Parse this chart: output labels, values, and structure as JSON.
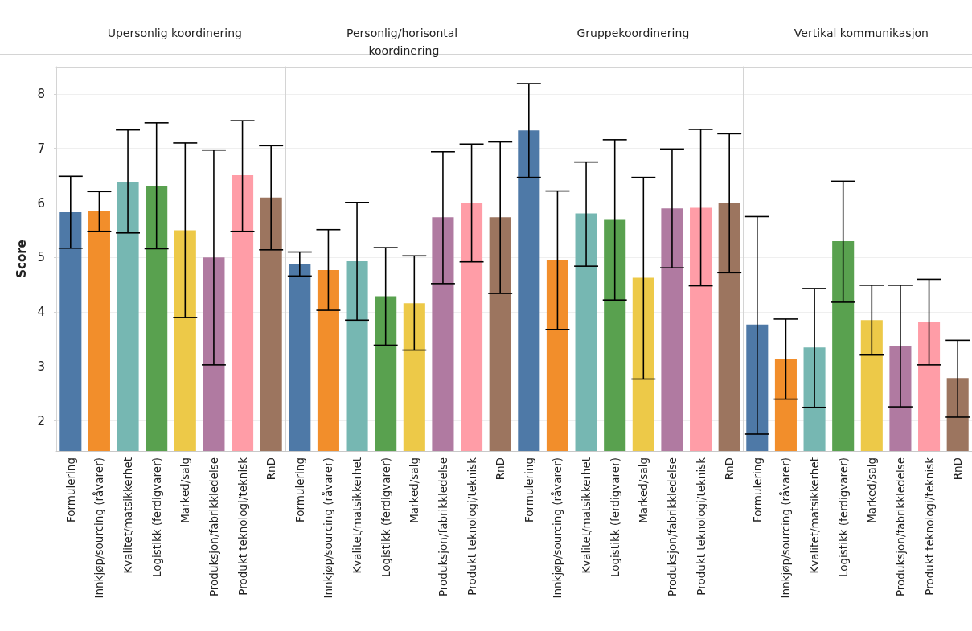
{
  "chart_data": [
    {
      "type": "bar",
      "title": "Upersonlig koordinering",
      "ylabel": "Score",
      "categories": [
        "Formulering",
        "Innkjøp/sourcing (råvarer)",
        "Kvalitet/matsikkerhet",
        "Logistikk (ferdigvarer)",
        "Marked/salg",
        "Produksjon/fabrikkledelse",
        "Produkt teknologi/teknisk",
        "RnD"
      ],
      "values": [
        5.83,
        5.85,
        6.39,
        6.31,
        5.5,
        5.0,
        6.51,
        6.1
      ],
      "errors": [
        [
          5.17,
          6.49
        ],
        [
          5.48,
          6.21
        ],
        [
          5.45,
          7.34
        ],
        [
          5.16,
          7.47
        ],
        [
          3.9,
          7.1
        ],
        [
          3.03,
          6.97
        ],
        [
          5.48,
          7.51
        ],
        [
          5.14,
          7.05
        ]
      ],
      "colors": [
        "#4e79a7",
        "#f28e2b",
        "#76b7b2",
        "#59a14f",
        "#edc948",
        "#b07aa1",
        "#ff9da7",
        "#9c755f"
      ],
      "ylim": [
        1.45,
        8.5
      ],
      "yticks": [
        2,
        3,
        4,
        5,
        6,
        7,
        8
      ],
      "grid": "y"
    },
    {
      "type": "bar",
      "title": "Personlig/horisontal koordinering",
      "categories": [
        "Formulering",
        "Innkjøp/sourcing (råvarer)",
        "Kvalitet/matsikkerhet",
        "Logistikk (ferdigvarer)",
        "Marked/salg",
        "Produksjon/fabrikkledelse",
        "Produkt teknologi/teknisk",
        "RnD"
      ],
      "values": [
        4.88,
        4.77,
        4.93,
        4.29,
        4.16,
        5.74,
        6.0,
        5.74
      ],
      "errors": [
        [
          4.66,
          5.1
        ],
        [
          4.03,
          5.51
        ],
        [
          3.85,
          6.01
        ],
        [
          3.39,
          5.18
        ],
        [
          3.3,
          5.03
        ],
        [
          4.52,
          6.94
        ],
        [
          4.92,
          7.08
        ],
        [
          4.34,
          7.12
        ]
      ],
      "colors": [
        "#4e79a7",
        "#f28e2b",
        "#76b7b2",
        "#59a14f",
        "#edc948",
        "#b07aa1",
        "#ff9da7",
        "#9c755f"
      ],
      "ylim": [
        1.45,
        8.5
      ],
      "yticks": [
        2,
        3,
        4,
        5,
        6,
        7,
        8
      ],
      "grid": "y",
      "tick_labels": "x"
    },
    {
      "type": "bar",
      "title": "Gruppekoordinering",
      "categories": [
        "Formulering",
        "Innkjøp/sourcing (råvarer)",
        "Kvalitet/matsikkerhet",
        "Logistikk (ferdigvarer)",
        "Marked/salg",
        "Produksjon/fabrikkledelse",
        "Produkt teknologi/teknisk",
        "RnD"
      ],
      "values": [
        7.33,
        4.95,
        5.81,
        5.69,
        4.63,
        5.9,
        5.91,
        6.0
      ],
      "errors": [
        [
          6.47,
          8.19
        ],
        [
          3.68,
          6.22
        ],
        [
          4.84,
          6.75
        ],
        [
          4.22,
          7.16
        ],
        [
          2.77,
          6.47
        ],
        [
          4.81,
          6.99
        ],
        [
          4.48,
          7.35
        ],
        [
          4.72,
          7.27
        ]
      ],
      "colors": [
        "#4e79a7",
        "#f28e2b",
        "#76b7b2",
        "#59a14f",
        "#edc948",
        "#b07aa1",
        "#ff9da7",
        "#9c755f"
      ],
      "ylim": [
        1.45,
        8.5
      ],
      "yticks": [
        2,
        3,
        4,
        5,
        6,
        7,
        8
      ],
      "grid": "y",
      "tick_labels": "x"
    },
    {
      "type": "bar",
      "title": "Vertikal kommunikasjon",
      "categories": [
        "Formulering",
        "Innkjøp/sourcing (råvarer)",
        "Kvalitet/matsikkerhet",
        "Logistikk (ferdigvarer)",
        "Marked/salg",
        "Produksjon/fabrikkledelse",
        "Produkt teknologi/teknisk",
        "RnD"
      ],
      "values": [
        3.77,
        3.14,
        3.35,
        5.3,
        3.85,
        3.37,
        3.82,
        2.79
      ],
      "errors": [
        [
          1.76,
          5.75
        ],
        [
          2.4,
          3.87
        ],
        [
          2.25,
          4.43
        ],
        [
          4.18,
          6.4
        ],
        [
          3.21,
          4.49
        ],
        [
          2.26,
          4.49
        ],
        [
          3.03,
          4.6
        ],
        [
          2.07,
          3.48
        ]
      ],
      "colors": [
        "#4e79a7",
        "#f28e2b",
        "#76b7b2",
        "#59a14f",
        "#edc948",
        "#b07aa1",
        "#ff9da7",
        "#9c755f"
      ],
      "ylim": [
        1.45,
        8.5
      ],
      "yticks": [
        2,
        3,
        4,
        5,
        6,
        7,
        8
      ],
      "grid": "y",
      "tick_labels": "x"
    }
  ]
}
